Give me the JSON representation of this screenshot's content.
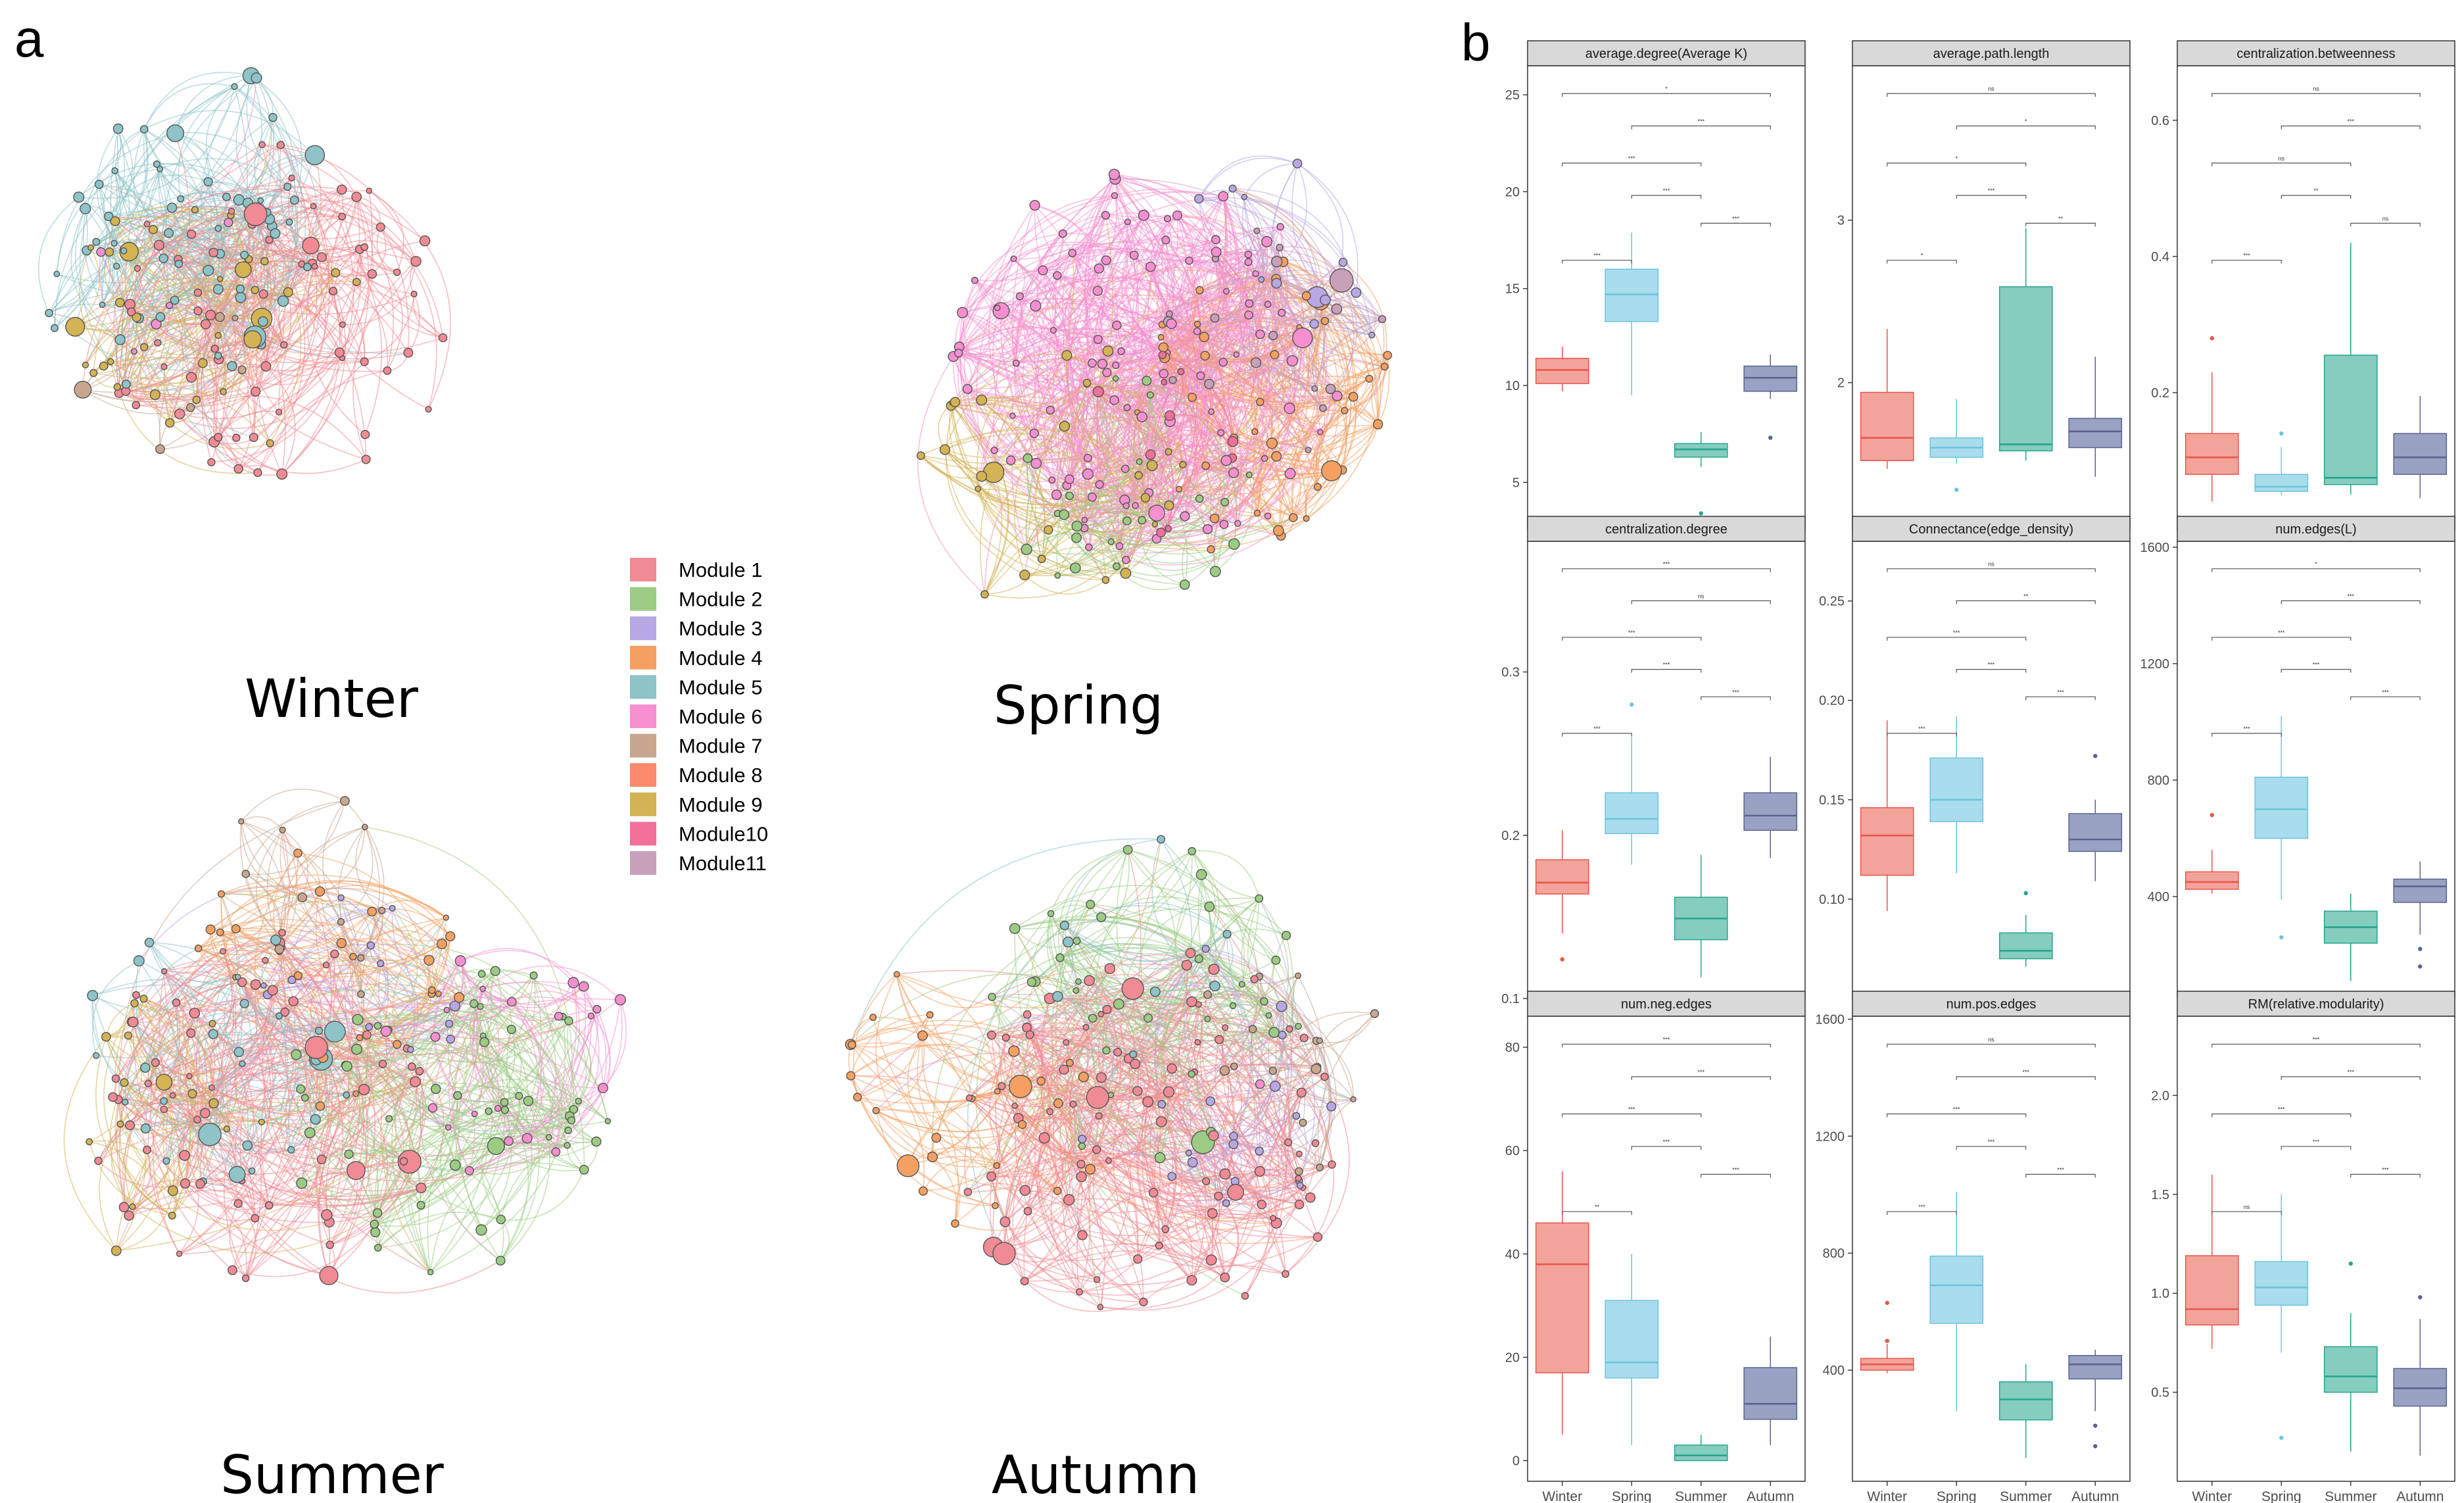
{
  "panel_labels": {
    "a": "a",
    "b": "b"
  },
  "networks": [
    {
      "id": "winter",
      "label": "Winter",
      "modules": [
        1,
        3,
        5,
        9,
        6,
        7
      ],
      "weights": [
        0.38,
        0.0,
        0.34,
        0.2,
        0.04,
        0.04
      ]
    },
    {
      "id": "spring",
      "label": "Spring",
      "modules": [
        6,
        4,
        9,
        2,
        3,
        11,
        10
      ],
      "weights": [
        0.46,
        0.18,
        0.14,
        0.08,
        0.05,
        0.05,
        0.04
      ]
    },
    {
      "id": "summer",
      "label": "Summer",
      "modules": [
        1,
        2,
        4,
        5,
        6,
        9,
        3,
        7
      ],
      "weights": [
        0.3,
        0.22,
        0.1,
        0.1,
        0.1,
        0.1,
        0.05,
        0.03
      ]
    },
    {
      "id": "autumn",
      "label": "Autumn",
      "modules": [
        1,
        2,
        3,
        4,
        5,
        7,
        6
      ],
      "weights": [
        0.42,
        0.22,
        0.12,
        0.12,
        0.04,
        0.05,
        0.03
      ]
    }
  ],
  "legend": {
    "items": [
      {
        "label": "Module 1",
        "color": "#f08a94"
      },
      {
        "label": "Module 2",
        "color": "#9ccc83"
      },
      {
        "label": "Module 3",
        "color": "#b7a8e4"
      },
      {
        "label": "Module 4",
        "color": "#f4a062"
      },
      {
        "label": "Module 5",
        "color": "#8ec3c8"
      },
      {
        "label": "Module 6",
        "color": "#f58fd0"
      },
      {
        "label": "Module 7",
        "color": "#c9a78f"
      },
      {
        "label": "Module 8",
        "color": "#f98a6c"
      },
      {
        "label": "Module 9",
        "color": "#d3b353"
      },
      {
        "label": "Module10",
        "color": "#f0709a"
      },
      {
        "label": "Module11",
        "color": "#c9a0b9"
      }
    ]
  },
  "chart_data": [
    {
      "type": "boxplot",
      "title": "average.degree(Average K)",
      "categories": [
        "Winter",
        "Spring",
        "Summer",
        "Autumn"
      ],
      "ylim": [
        2.6,
        26.5
      ],
      "yticks": [
        5,
        10,
        15,
        20,
        25
      ],
      "ytick_labels": [
        "5",
        "10",
        "15",
        "20",
        "25"
      ],
      "boxes": [
        {
          "min": 9.7,
          "q1": 10.1,
          "median": 10.8,
          "q3": 11.4,
          "max": 12.0,
          "outliers": []
        },
        {
          "min": 9.5,
          "q1": 13.3,
          "median": 14.7,
          "q3": 16.0,
          "max": 17.9,
          "outliers": []
        },
        {
          "min": 5.8,
          "q1": 6.3,
          "median": 6.7,
          "q3": 7.0,
          "max": 7.6,
          "outliers": [
            3.4
          ]
        },
        {
          "min": 9.3,
          "q1": 9.7,
          "median": 10.4,
          "q3": 11.0,
          "max": 11.6,
          "outliers": [
            7.3
          ]
        }
      ],
      "sig": [
        {
          "pair": [
            0,
            3
          ],
          "label": "*"
        },
        {
          "pair": [
            1,
            3
          ],
          "label": "***"
        },
        {
          "pair": [
            0,
            2
          ],
          "label": "***"
        },
        {
          "pair": [
            1,
            2
          ],
          "label": "***"
        },
        {
          "pair": [
            2,
            3
          ],
          "label": "***"
        },
        {
          "pair": [
            0,
            1
          ],
          "label": "***"
        }
      ]
    },
    {
      "type": "boxplot",
      "title": "average.path.length",
      "categories": [
        "Winter",
        "Spring",
        "Summer",
        "Autumn"
      ],
      "ylim": [
        1.1,
        3.95
      ],
      "yticks": [
        2,
        3
      ],
      "ytick_labels": [
        "2",
        "3"
      ],
      "boxes": [
        {
          "min": 1.47,
          "q1": 1.52,
          "median": 1.66,
          "q3": 1.94,
          "max": 2.33,
          "outliers": []
        },
        {
          "min": 1.5,
          "q1": 1.54,
          "median": 1.6,
          "q3": 1.66,
          "max": 1.9,
          "outliers": [
            1.34
          ]
        },
        {
          "min": 1.52,
          "q1": 1.58,
          "median": 1.62,
          "q3": 2.59,
          "max": 2.95,
          "outliers": []
        },
        {
          "min": 1.42,
          "q1": 1.6,
          "median": 1.7,
          "q3": 1.78,
          "max": 2.16,
          "outliers": []
        }
      ],
      "sig": [
        {
          "pair": [
            0,
            3
          ],
          "label": "ns"
        },
        {
          "pair": [
            1,
            3
          ],
          "label": "*"
        },
        {
          "pair": [
            0,
            2
          ],
          "label": "*"
        },
        {
          "pair": [
            1,
            2
          ],
          "label": "***"
        },
        {
          "pair": [
            2,
            3
          ],
          "label": "**"
        },
        {
          "pair": [
            0,
            1
          ],
          "label": "*"
        }
      ]
    },
    {
      "type": "boxplot",
      "title": "centralization.betweenness",
      "categories": [
        "Winter",
        "Spring",
        "Summer",
        "Autumn"
      ],
      "ylim": [
        0.0,
        0.68
      ],
      "yticks": [
        0.2,
        0.4,
        0.6
      ],
      "ytick_labels": [
        "0.2",
        "0.4",
        "0.6"
      ],
      "boxes": [
        {
          "min": 0.04,
          "q1": 0.08,
          "median": 0.105,
          "q3": 0.14,
          "max": 0.23,
          "outliers": [
            0.28
          ]
        },
        {
          "min": 0.05,
          "q1": 0.055,
          "median": 0.062,
          "q3": 0.08,
          "max": 0.12,
          "outliers": [
            0.14
          ]
        },
        {
          "min": 0.05,
          "q1": 0.065,
          "median": 0.075,
          "q3": 0.255,
          "max": 0.42,
          "outliers": []
        },
        {
          "min": 0.045,
          "q1": 0.08,
          "median": 0.105,
          "q3": 0.14,
          "max": 0.195,
          "outliers": []
        }
      ],
      "sig": [
        {
          "pair": [
            0,
            3
          ],
          "label": "ns"
        },
        {
          "pair": [
            1,
            3
          ],
          "label": "***"
        },
        {
          "pair": [
            0,
            2
          ],
          "label": "ns"
        },
        {
          "pair": [
            1,
            2
          ],
          "label": "**"
        },
        {
          "pair": [
            2,
            3
          ],
          "label": "ns"
        },
        {
          "pair": [
            0,
            1
          ],
          "label": "***"
        }
      ]
    },
    {
      "type": "boxplot",
      "title": "centralization.degree",
      "categories": [
        "Winter",
        "Spring",
        "Summer",
        "Autumn"
      ],
      "ylim": [
        0.1,
        0.38
      ],
      "yticks": [
        0.1,
        0.2,
        0.3
      ],
      "ytick_labels": [
        "0.1",
        "0.2",
        "0.3"
      ],
      "boxes": [
        {
          "min": 0.14,
          "q1": 0.164,
          "median": 0.171,
          "q3": 0.185,
          "max": 0.203,
          "outliers": [
            0.124
          ]
        },
        {
          "min": 0.182,
          "q1": 0.201,
          "median": 0.21,
          "q3": 0.226,
          "max": 0.26,
          "outliers": [
            0.28
          ]
        },
        {
          "min": 0.113,
          "q1": 0.136,
          "median": 0.149,
          "q3": 0.162,
          "max": 0.188,
          "outliers": []
        },
        {
          "min": 0.186,
          "q1": 0.203,
          "median": 0.212,
          "q3": 0.226,
          "max": 0.248,
          "outliers": []
        }
      ],
      "sig": [
        {
          "pair": [
            0,
            3
          ],
          "label": "***"
        },
        {
          "pair": [
            1,
            3
          ],
          "label": "ns"
        },
        {
          "pair": [
            0,
            2
          ],
          "label": "***"
        },
        {
          "pair": [
            1,
            2
          ],
          "label": "***"
        },
        {
          "pair": [
            2,
            3
          ],
          "label": "***"
        },
        {
          "pair": [
            0,
            1
          ],
          "label": "***"
        }
      ]
    },
    {
      "type": "boxplot",
      "title": "Connectance(edge_density)",
      "categories": [
        "Winter",
        "Spring",
        "Summer",
        "Autumn"
      ],
      "ylim": [
        0.05,
        0.28
      ],
      "yticks": [
        0.1,
        0.15,
        0.2,
        0.25
      ],
      "ytick_labels": [
        "0.10",
        "0.15",
        "0.20",
        "0.25"
      ],
      "boxes": [
        {
          "min": 0.094,
          "q1": 0.112,
          "median": 0.132,
          "q3": 0.146,
          "max": 0.19,
          "outliers": []
        },
        {
          "min": 0.113,
          "q1": 0.139,
          "median": 0.15,
          "q3": 0.171,
          "max": 0.192,
          "outliers": []
        },
        {
          "min": 0.066,
          "q1": 0.07,
          "median": 0.074,
          "q3": 0.083,
          "max": 0.092,
          "outliers": [
            0.103
          ]
        },
        {
          "min": 0.109,
          "q1": 0.124,
          "median": 0.13,
          "q3": 0.143,
          "max": 0.15,
          "outliers": [
            0.172
          ]
        }
      ],
      "sig": [
        {
          "pair": [
            0,
            3
          ],
          "label": "ns"
        },
        {
          "pair": [
            1,
            3
          ],
          "label": "**"
        },
        {
          "pair": [
            0,
            2
          ],
          "label": "***"
        },
        {
          "pair": [
            1,
            2
          ],
          "label": "***"
        },
        {
          "pair": [
            2,
            3
          ],
          "label": "***"
        },
        {
          "pair": [
            0,
            1
          ],
          "label": "***"
        }
      ]
    },
    {
      "type": "boxplot",
      "title": "num.edges(L)",
      "categories": [
        "Winter",
        "Spring",
        "Summer",
        "Autumn"
      ],
      "ylim": [
        50,
        1620
      ],
      "yticks": [
        400,
        800,
        1200,
        1600
      ],
      "ytick_labels": [
        "400",
        "800",
        "1200",
        "1600"
      ],
      "boxes": [
        {
          "min": 410,
          "q1": 425,
          "median": 450,
          "q3": 485,
          "max": 560,
          "outliers": [
            680
          ]
        },
        {
          "min": 390,
          "q1": 600,
          "median": 700,
          "q3": 810,
          "max": 1020,
          "outliers": [
            260
          ]
        },
        {
          "min": 110,
          "q1": 240,
          "median": 295,
          "q3": 350,
          "max": 410,
          "outliers": []
        },
        {
          "min": 270,
          "q1": 380,
          "median": 435,
          "q3": 460,
          "max": 520,
          "outliers": [
            220,
            160
          ]
        }
      ],
      "sig": [
        {
          "pair": [
            0,
            3
          ],
          "label": "*"
        },
        {
          "pair": [
            1,
            3
          ],
          "label": "***"
        },
        {
          "pair": [
            0,
            2
          ],
          "label": "***"
        },
        {
          "pair": [
            1,
            2
          ],
          "label": "***"
        },
        {
          "pair": [
            2,
            3
          ],
          "label": "***"
        },
        {
          "pair": [
            0,
            1
          ],
          "label": "***"
        }
      ]
    },
    {
      "type": "boxplot",
      "title": "num.neg.edges",
      "categories": [
        "Winter",
        "Spring",
        "Summer",
        "Autumn"
      ],
      "ylim": [
        -4,
        86
      ],
      "yticks": [
        0,
        20,
        40,
        60,
        80
      ],
      "ytick_labels": [
        "0",
        "20",
        "40",
        "60",
        "80"
      ],
      "boxes": [
        {
          "min": 5,
          "q1": 17,
          "median": 38,
          "q3": 46,
          "max": 56,
          "outliers": []
        },
        {
          "min": 3,
          "q1": 16,
          "median": 19,
          "q3": 31,
          "max": 40,
          "outliers": []
        },
        {
          "min": 0,
          "q1": 0,
          "median": 1,
          "q3": 3,
          "max": 5,
          "outliers": []
        },
        {
          "min": 3,
          "q1": 8,
          "median": 11,
          "q3": 18,
          "max": 24,
          "outliers": []
        }
      ],
      "sig": [
        {
          "pair": [
            0,
            3
          ],
          "label": "***"
        },
        {
          "pair": [
            1,
            3
          ],
          "label": "***"
        },
        {
          "pair": [
            0,
            2
          ],
          "label": "***"
        },
        {
          "pair": [
            1,
            2
          ],
          "label": "***"
        },
        {
          "pair": [
            2,
            3
          ],
          "label": "***"
        },
        {
          "pair": [
            0,
            1
          ],
          "label": "**"
        }
      ]
    },
    {
      "type": "boxplot",
      "title": "num.pos.edges",
      "categories": [
        "Winter",
        "Spring",
        "Summer",
        "Autumn"
      ],
      "ylim": [
        20,
        1610
      ],
      "yticks": [
        400,
        800,
        1200,
        1600
      ],
      "ytick_labels": [
        "400",
        "800",
        "1200",
        "1600"
      ],
      "boxes": [
        {
          "min": 390,
          "q1": 400,
          "median": 420,
          "q3": 440,
          "max": 490,
          "outliers": [
            500,
            630
          ]
        },
        {
          "min": 260,
          "q1": 560,
          "median": 690,
          "q3": 790,
          "max": 1010,
          "outliers": []
        },
        {
          "min": 100,
          "q1": 230,
          "median": 300,
          "q3": 360,
          "max": 420,
          "outliers": []
        },
        {
          "min": 260,
          "q1": 370,
          "median": 420,
          "q3": 450,
          "max": 470,
          "outliers": [
            210,
            140
          ]
        }
      ],
      "sig": [
        {
          "pair": [
            0,
            3
          ],
          "label": "ns"
        },
        {
          "pair": [
            1,
            3
          ],
          "label": "***"
        },
        {
          "pair": [
            0,
            2
          ],
          "label": "***"
        },
        {
          "pair": [
            1,
            2
          ],
          "label": "***"
        },
        {
          "pair": [
            2,
            3
          ],
          "label": "***"
        },
        {
          "pair": [
            0,
            1
          ],
          "label": "***"
        }
      ]
    },
    {
      "type": "boxplot",
      "title": "RM(relative.modularity)",
      "categories": [
        "Winter",
        "Spring",
        "Summer",
        "Autumn"
      ],
      "ylim": [
        0.05,
        2.4
      ],
      "yticks": [
        0.5,
        1.0,
        1.5,
        2.0
      ],
      "ytick_labels": [
        "0.5",
        "1.0",
        "1.5",
        "2.0"
      ],
      "boxes": [
        {
          "min": 0.72,
          "q1": 0.84,
          "median": 0.92,
          "q3": 1.19,
          "max": 1.6,
          "outliers": []
        },
        {
          "min": 0.7,
          "q1": 0.94,
          "median": 1.03,
          "q3": 1.16,
          "max": 1.5,
          "outliers": [
            0.27
          ]
        },
        {
          "min": 0.2,
          "q1": 0.5,
          "median": 0.58,
          "q3": 0.73,
          "max": 0.9,
          "outliers": [
            1.15
          ]
        },
        {
          "min": 0.18,
          "q1": 0.43,
          "median": 0.52,
          "q3": 0.62,
          "max": 0.87,
          "outliers": [
            0.98
          ]
        }
      ],
      "sig": [
        {
          "pair": [
            0,
            3
          ],
          "label": "***"
        },
        {
          "pair": [
            1,
            3
          ],
          "label": "***"
        },
        {
          "pair": [
            0,
            2
          ],
          "label": "***"
        },
        {
          "pair": [
            1,
            2
          ],
          "label": "***"
        },
        {
          "pair": [
            2,
            3
          ],
          "label": "***"
        },
        {
          "pair": [
            0,
            1
          ],
          "label": "ns"
        }
      ]
    }
  ],
  "season_colors": {
    "Winter": {
      "fill": "#f2a49b",
      "stroke": "#e8564a"
    },
    "Spring": {
      "fill": "#a9dced",
      "stroke": "#6cc4dc"
    },
    "Summer": {
      "fill": "#85cdbf",
      "stroke": "#27a58e"
    },
    "Autumn": {
      "fill": "#99a2c2",
      "stroke": "#5a6491"
    }
  }
}
